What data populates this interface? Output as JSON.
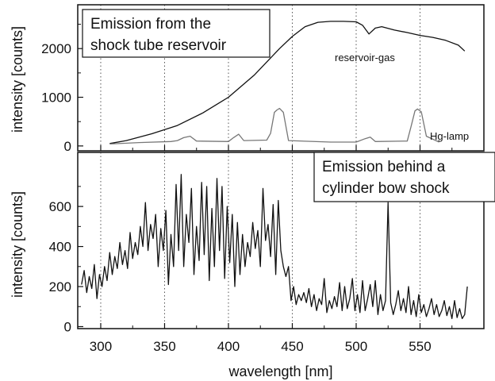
{
  "chart_data": [
    {
      "type": "line",
      "panel": "top",
      "annotation": "Emission from the\nshock tube reservoir",
      "ylabel": "intensity [counts]",
      "ylim": [
        -100,
        2900
      ],
      "yticks": [
        0,
        1000,
        2000
      ],
      "series": [
        {
          "name": "reservoir-gas",
          "color": "#111111",
          "x": [
            307,
            320,
            340,
            360,
            380,
            400,
            420,
            440,
            450,
            460,
            470,
            480,
            490,
            500,
            505,
            510,
            515,
            520,
            530,
            540,
            550,
            560,
            570,
            580,
            585
          ],
          "y": [
            50,
            110,
            250,
            420,
            680,
            1000,
            1450,
            2000,
            2250,
            2450,
            2540,
            2560,
            2560,
            2550,
            2480,
            2300,
            2420,
            2450,
            2380,
            2330,
            2270,
            2230,
            2170,
            2070,
            1950
          ]
        },
        {
          "name": "Hg-lamp",
          "color": "#777777",
          "x": [
            307,
            330,
            355,
            360,
            365,
            370,
            375,
            400,
            404,
            408,
            412,
            430,
            433,
            436,
            438,
            440,
            443,
            447,
            480,
            500,
            507,
            511,
            515,
            540,
            543,
            546,
            548,
            551,
            555,
            565
          ],
          "y": [
            40,
            70,
            90,
            110,
            170,
            200,
            100,
            90,
            170,
            240,
            110,
            120,
            260,
            690,
            740,
            770,
            690,
            110,
            80,
            80,
            150,
            180,
            90,
            100,
            400,
            720,
            760,
            700,
            200,
            80
          ]
        }
      ]
    },
    {
      "type": "line",
      "panel": "bottom",
      "annotation": "Emission behind a\ncylinder bow shock",
      "ylabel": "intensity [counts]",
      "xlabel": "wavelength [nm]",
      "xlim": [
        282,
        600
      ],
      "ylim": [
        -10,
        870
      ],
      "yticks": [
        0,
        200,
        400,
        600
      ],
      "xticks": [
        300,
        350,
        400,
        450,
        500,
        550
      ],
      "series": [
        {
          "name": "",
          "color": "#111111",
          "x": [
            285,
            287,
            289,
            291,
            293,
            295,
            297,
            299,
            301,
            303,
            305,
            307,
            309,
            311,
            313,
            315,
            317,
            319,
            321,
            323,
            325,
            327,
            329,
            331,
            333,
            335,
            337,
            339,
            341,
            343,
            345,
            347,
            349,
            351,
            353,
            355,
            357,
            359,
            361,
            363,
            365,
            367,
            369,
            371,
            373,
            375,
            377,
            379,
            381,
            383,
            385,
            387,
            389,
            391,
            393,
            395,
            397,
            399,
            401,
            403,
            405,
            407,
            409,
            411,
            413,
            415,
            417,
            419,
            421,
            423,
            425,
            427,
            429,
            431,
            433,
            435,
            437,
            439,
            441,
            443,
            445,
            447,
            449,
            451,
            453,
            455,
            457,
            459,
            461,
            463,
            465,
            467,
            469,
            471,
            473,
            475,
            477,
            479,
            481,
            483,
            485,
            487,
            489,
            491,
            493,
            495,
            497,
            499,
            501,
            503,
            505,
            507,
            509,
            511,
            513,
            515,
            517,
            519,
            521,
            523,
            525,
            527,
            529,
            531,
            533,
            535,
            537,
            539,
            541,
            543,
            545,
            547,
            549,
            551,
            553,
            555,
            557,
            559,
            561,
            563,
            565,
            567,
            569,
            571,
            573,
            575,
            577,
            579,
            581,
            583,
            585,
            587
          ],
          "y": [
            210,
            280,
            170,
            250,
            190,
            310,
            140,
            260,
            200,
            300,
            230,
            370,
            260,
            350,
            290,
            420,
            310,
            380,
            290,
            470,
            340,
            420,
            360,
            500,
            400,
            620,
            380,
            510,
            440,
            560,
            300,
            490,
            380,
            580,
            210,
            460,
            300,
            710,
            380,
            760,
            300,
            560,
            420,
            690,
            260,
            500,
            330,
            720,
            360,
            700,
            230,
            590,
            300,
            740,
            380,
            700,
            240,
            600,
            320,
            560,
            200,
            520,
            260,
            460,
            300,
            420,
            350,
            520,
            390,
            480,
            300,
            690,
            430,
            510,
            350,
            610,
            260,
            630,
            380,
            300,
            250,
            300,
            130,
            200,
            110,
            160,
            130,
            170,
            120,
            190,
            100,
            160,
            80,
            140,
            110,
            240,
            70,
            130,
            90,
            150,
            100,
            220,
            80,
            200,
            90,
            140,
            240,
            80,
            160,
            70,
            230,
            80,
            140,
            210,
            100,
            230,
            60,
            160,
            80,
            130,
            620,
            120,
            60,
            110,
            180,
            80,
            140,
            70,
            200,
            60,
            130,
            50,
            160,
            70,
            110,
            50,
            90,
            140,
            60,
            110,
            50,
            80,
            130,
            55,
            100,
            40,
            130,
            45,
            90,
            40,
            60,
            200
          ]
        }
      ]
    }
  ]
}
